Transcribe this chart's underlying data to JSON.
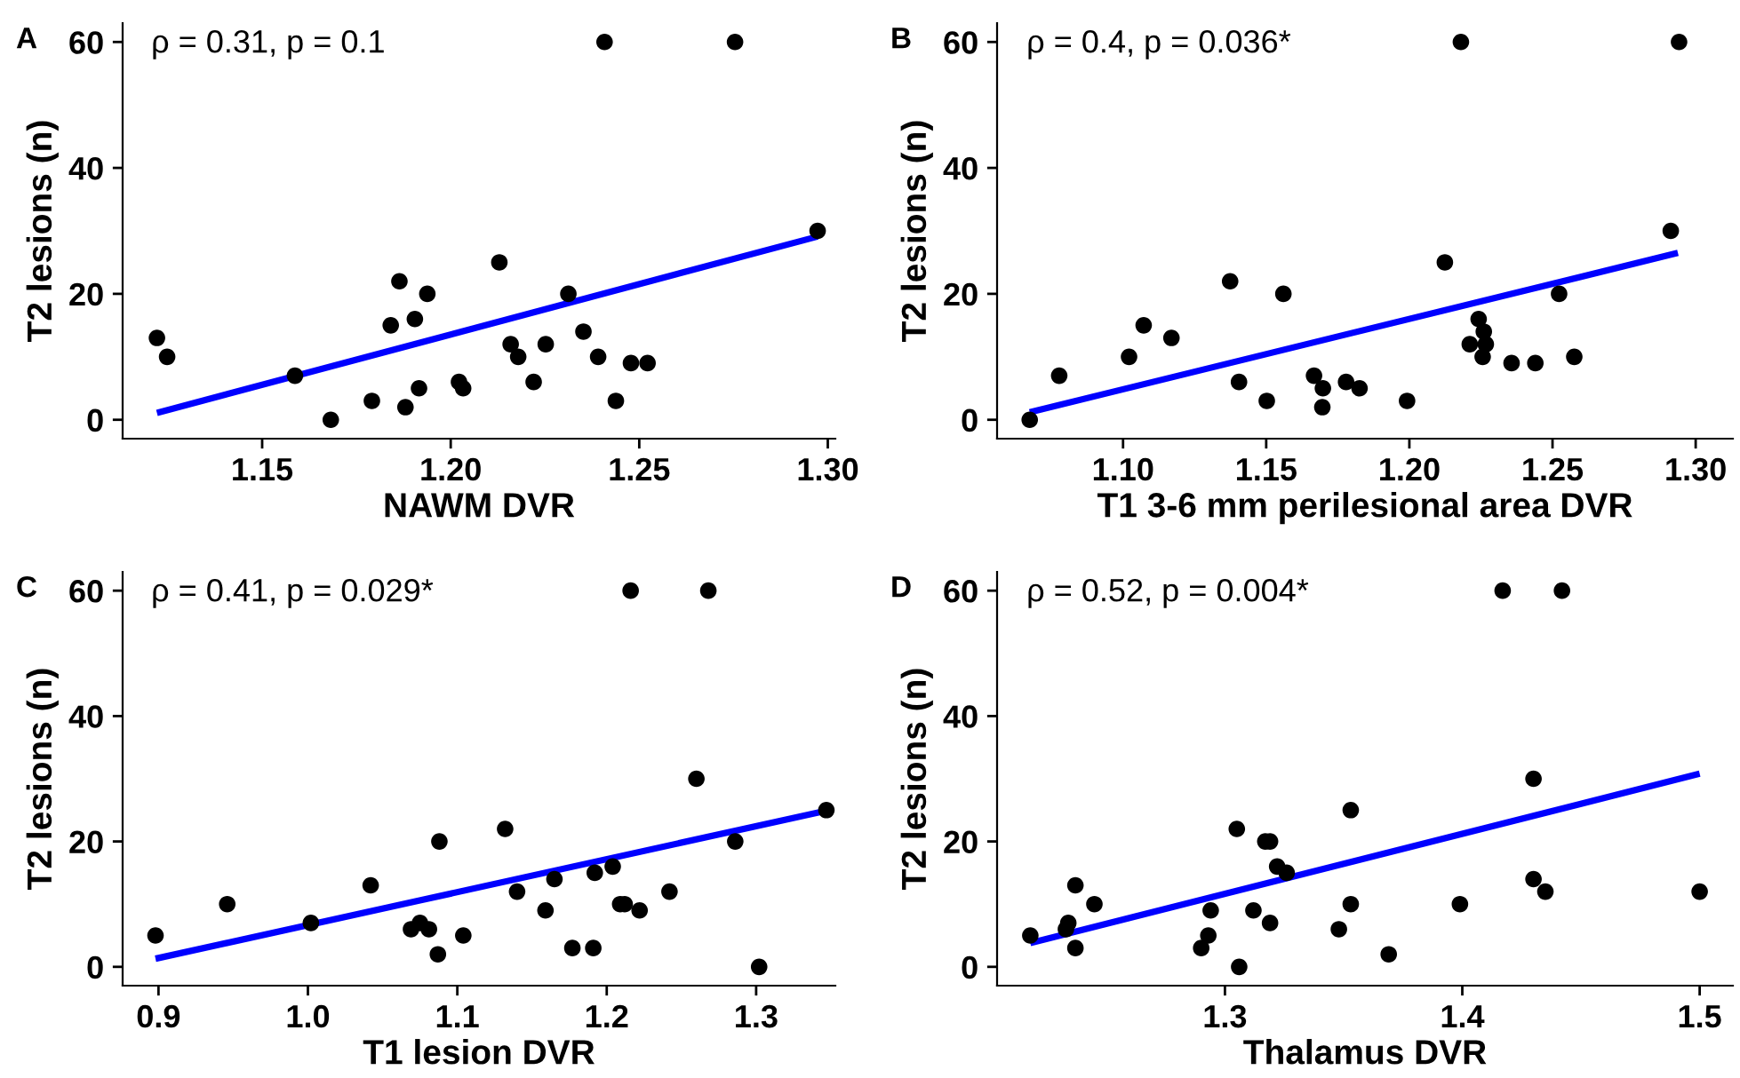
{
  "chart_data": [
    {
      "type": "scatter",
      "xlabel": "NAWM DVR",
      "ylabel": "T2 lesions (n)",
      "annotations": [
        "A",
        "ρ = 0.31, p = 0.1"
      ],
      "xlim": [
        1.113,
        1.302
      ],
      "xticks": [
        1.15,
        {
          "value": 1.2,
          "label": "1.20"
        },
        1.25,
        {
          "value": 1.3,
          "label": "1.30"
        }
      ],
      "ylim": [
        -3,
        63
      ],
      "yticks": [
        0,
        20,
        40,
        60
      ],
      "series": [
        {
          "color": "#000000",
          "marker": "circle",
          "x": [
            1.1221,
            1.1248,
            1.1587,
            1.1682,
            1.1791,
            1.1841,
            1.1864,
            1.188,
            1.1905,
            1.1916,
            1.1938,
            1.2022,
            1.2033,
            1.2129,
            1.2159,
            1.2179,
            1.222,
            1.2252,
            1.2312,
            1.2352,
            1.2391,
            1.2408,
            1.2438,
            1.2478,
            1.2522,
            1.2754,
            1.2973
          ],
          "values": [
            13,
            10,
            7,
            0,
            3,
            15,
            22,
            2,
            16,
            5,
            20,
            6,
            5,
            25,
            12,
            10,
            6,
            12,
            20,
            14,
            10,
            60,
            3,
            9,
            9,
            60,
            30
          ]
        },
        {
          "type": "line",
          "color": "#0000ff",
          "x": [
            1.1221,
            1.2973
          ],
          "values": [
            1.1,
            29.1
          ]
        }
      ]
    },
    {
      "type": "scatter",
      "xlabel": "T1 3-6 mm perilesional area DVR",
      "ylabel": "T2 lesions (n)",
      "annotations": [
        "B",
        "ρ = 0.4, p = 0.036*"
      ],
      "xlim": [
        1.056,
        1.313
      ],
      "xticks": [
        {
          "value": 1.1,
          "label": "1.10"
        },
        1.15,
        {
          "value": 1.2,
          "label": "1.20"
        },
        1.25,
        {
          "value": 1.3,
          "label": "1.30"
        }
      ],
      "ylim": [
        -3,
        63
      ],
      "yticks": [
        0,
        20,
        40,
        60
      ],
      "series": [
        {
          "color": "#000000",
          "marker": "circle",
          "x": [
            1.0674,
            1.0777,
            1.1021,
            1.1072,
            1.1169,
            1.1374,
            1.1405,
            1.1502,
            1.156,
            1.1667,
            1.1698,
            1.1696,
            1.1779,
            1.1826,
            1.1992,
            1.2124,
            1.218,
            1.2211,
            1.2242,
            1.226,
            1.2267,
            1.2256,
            1.2357,
            1.244,
            1.2523,
            1.2576,
            1.2913,
            1.2942
          ],
          "values": [
            0,
            7,
            10,
            15,
            13,
            22,
            6,
            3,
            20,
            7,
            5,
            2,
            6,
            5,
            3,
            25,
            60,
            12,
            16,
            14,
            12,
            10,
            9,
            9,
            20,
            10,
            30,
            60
          ]
        },
        {
          "type": "line",
          "color": "#0000ff",
          "x": [
            1.0674,
            1.2938
          ],
          "values": [
            1.2,
            26.5
          ]
        }
      ]
    },
    {
      "type": "scatter",
      "xlabel": "T1 lesion DVR",
      "ylabel": "T2 lesions (n)",
      "annotations": [
        "C",
        "ρ = 0.41, p = 0.029*"
      ],
      "xlim": [
        0.876,
        1.353
      ],
      "xticks": [
        0.9,
        {
          "value": 1.0,
          "label": "1.0"
        },
        1.1,
        1.2,
        1.3
      ],
      "ylim": [
        -3,
        63
      ],
      "yticks": [
        0,
        20,
        40,
        60
      ],
      "series": [
        {
          "color": "#000000",
          "marker": "circle",
          "x": [
            0.898,
            0.946,
            1.002,
            1.042,
            1.069,
            1.075,
            1.081,
            1.087,
            1.088,
            1.104,
            1.132,
            1.14,
            1.159,
            1.165,
            1.177,
            1.191,
            1.192,
            1.204,
            1.209,
            1.212,
            1.216,
            1.222,
            1.242,
            1.26,
            1.268,
            1.286,
            1.302,
            1.347
          ],
          "values": [
            5,
            10,
            7,
            13,
            6,
            7,
            6,
            2,
            20,
            5,
            22,
            12,
            9,
            14,
            3,
            3,
            15,
            16,
            10,
            10,
            60,
            9,
            12,
            30,
            60,
            20,
            0,
            25
          ]
        },
        {
          "type": "line",
          "color": "#0000ff",
          "x": [
            0.898,
            1.347
          ],
          "values": [
            1.3,
            24.9
          ]
        }
      ]
    },
    {
      "type": "scatter",
      "xlabel": "Thalamus DVR",
      "ylabel": "T2 lesions (n)",
      "annotations": [
        "D",
        "ρ = 0.52, p = 0.004*"
      ],
      "xlim": [
        1.204,
        1.514
      ],
      "xticks": [
        1.3,
        1.4,
        1.5
      ],
      "ylim": [
        -3,
        63
      ],
      "yticks": [
        0,
        20,
        40,
        60
      ],
      "series": [
        {
          "color": "#000000",
          "marker": "circle",
          "x": [
            1.218,
            1.233,
            1.234,
            1.237,
            1.237,
            1.245,
            1.29,
            1.293,
            1.294,
            1.305,
            1.306,
            1.312,
            1.317,
            1.319,
            1.319,
            1.322,
            1.326,
            1.348,
            1.353,
            1.353,
            1.369,
            1.399,
            1.417,
            1.43,
            1.43,
            1.435,
            1.442,
            1.5
          ],
          "values": [
            5,
            6,
            7,
            3,
            13,
            10,
            3,
            5,
            9,
            22,
            0,
            9,
            20,
            20,
            7,
            16,
            15,
            6,
            25,
            10,
            2,
            10,
            60,
            30,
            14,
            12,
            60,
            12
          ]
        },
        {
          "type": "line",
          "color": "#0000ff",
          "x": [
            1.218,
            1.5
          ],
          "values": [
            3.8,
            30.8
          ]
        }
      ]
    }
  ]
}
